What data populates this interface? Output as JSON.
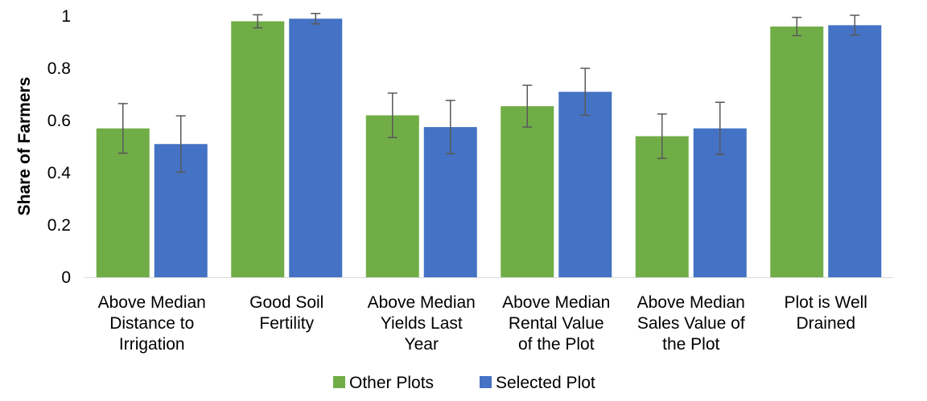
{
  "chart_data": {
    "type": "bar",
    "title": "",
    "xlabel": "",
    "ylabel": "Share of Farmers",
    "ylim": [
      0,
      1
    ],
    "yticks": [
      "0",
      "0.2",
      "0.4",
      "0.6",
      "0.8",
      "1"
    ],
    "grid": false,
    "legend_position": "bottom",
    "categories": [
      [
        "Above Median",
        "Distance to",
        "Irrigation"
      ],
      [
        "Good Soil",
        "Fertility"
      ],
      [
        "Above Median",
        "Yields Last",
        "Year"
      ],
      [
        "Above Median",
        "Rental Value",
        "of the Plot"
      ],
      [
        "Above Median",
        "Sales Value of",
        "the Plot"
      ],
      [
        "Plot is Well",
        "Drained"
      ]
    ],
    "series": [
      {
        "name": "Other Plots",
        "color": "#70ad47",
        "values": [
          0.57,
          0.98,
          0.62,
          0.655,
          0.54,
          0.96
        ],
        "error": [
          0.095,
          0.025,
          0.085,
          0.08,
          0.085,
          0.035
        ]
      },
      {
        "name": "Selected Plot",
        "color": "#4472c4",
        "values": [
          0.51,
          0.99,
          0.575,
          0.71,
          0.57,
          0.965
        ],
        "error": [
          0.108,
          0.02,
          0.102,
          0.09,
          0.1,
          0.038
        ]
      }
    ],
    "error_bar_color": "#595959"
  }
}
